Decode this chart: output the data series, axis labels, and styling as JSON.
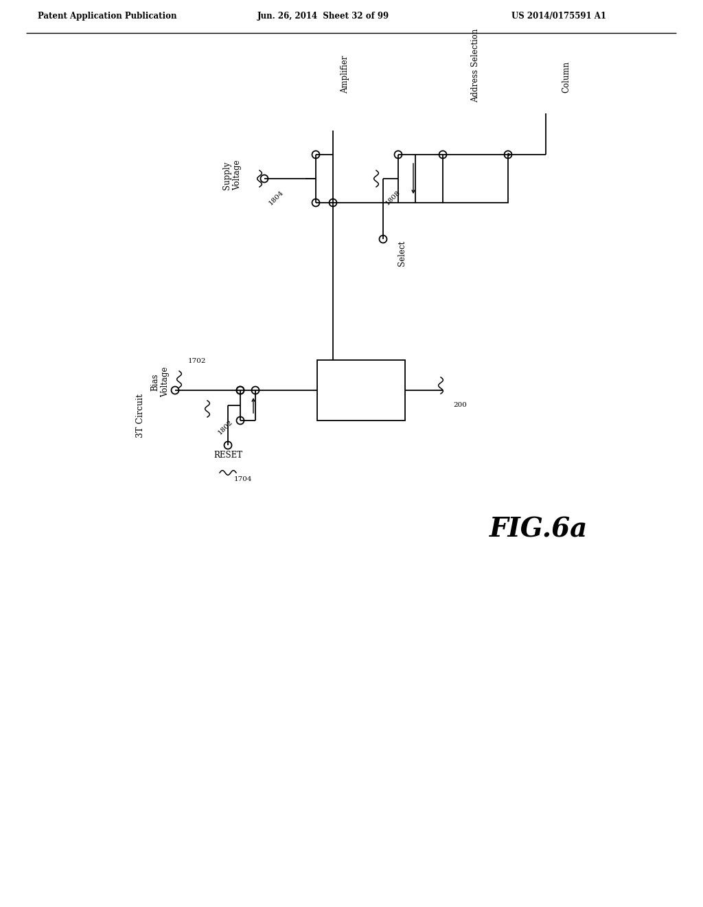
{
  "bg_color": "#ffffff",
  "header_left": "Patent Application Publication",
  "header_center": "Jun. 26, 2014  Sheet 32 of 99",
  "header_right": "US 2014/0175591 A1",
  "fig_label": "FIG.6a",
  "lw": 1.3
}
